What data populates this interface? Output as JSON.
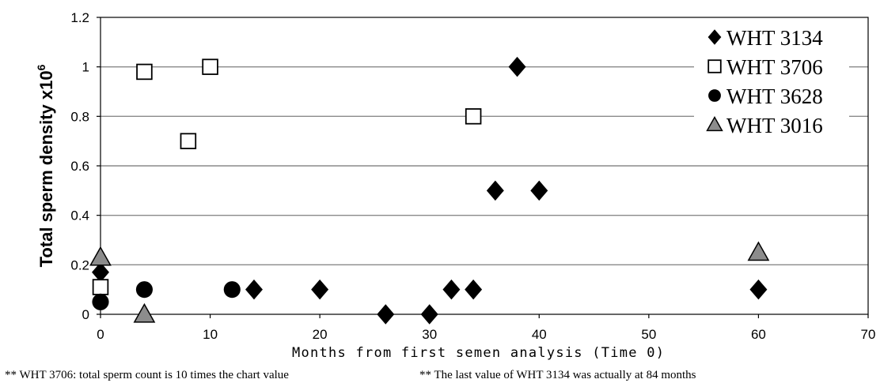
{
  "chart_data": {
    "type": "scatter",
    "xlabel": "Months from first semen analysis (Time 0)",
    "ylabel": "Total sperm density x10",
    "ylabel_superscript": "6",
    "xlim": [
      0,
      70
    ],
    "ylim": [
      0,
      1.2
    ],
    "x_ticks": [
      0,
      10,
      20,
      30,
      40,
      50,
      60,
      70
    ],
    "y_ticks": [
      0,
      0.2,
      0.4,
      0.6,
      0.8,
      1,
      1.2
    ],
    "x_tick_labels": [
      "0",
      "10",
      "20",
      "30",
      "40",
      "50",
      "60",
      "70"
    ],
    "y_tick_labels": [
      "0",
      "0.2",
      "0.4",
      "0.6",
      "0.8",
      "1",
      "1.2"
    ],
    "grid": "horizontal",
    "legend_position": "top-right",
    "series": [
      {
        "name": "WHT 3134",
        "marker": "diamond",
        "color": "#000000",
        "points": [
          [
            0,
            0.17
          ],
          [
            14,
            0.1
          ],
          [
            20,
            0.1
          ],
          [
            26,
            0
          ],
          [
            30,
            0
          ],
          [
            32,
            0.1
          ],
          [
            34,
            0.1
          ],
          [
            36,
            0.5
          ],
          [
            38,
            1.0
          ],
          [
            40,
            0.5
          ],
          [
            60,
            0.1
          ]
        ]
      },
      {
        "name": "WHT 3706",
        "marker": "square-open",
        "color": "#000000",
        "points": [
          [
            0,
            0.11
          ],
          [
            4,
            0.98
          ],
          [
            8,
            0.7
          ],
          [
            10,
            1.0
          ],
          [
            34,
            0.8
          ]
        ]
      },
      {
        "name": "WHT 3628",
        "marker": "circle",
        "color": "#000000",
        "points": [
          [
            0,
            0.05
          ],
          [
            4,
            0.1
          ],
          [
            12,
            0.1
          ]
        ]
      },
      {
        "name": "WHT 3016",
        "marker": "triangle",
        "color": "#8c8c8c",
        "points": [
          [
            0,
            0.23
          ],
          [
            4,
            0.0
          ],
          [
            60,
            0.25
          ]
        ]
      }
    ]
  },
  "footnotes": {
    "left": "** WHT 3706: total sperm count is 10 times the chart value",
    "right": "** The last value of WHT 3134 was actually at 84 months"
  }
}
